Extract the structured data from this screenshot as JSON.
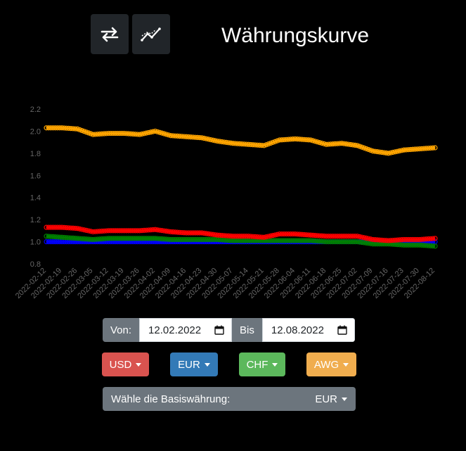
{
  "header": {
    "title": "Währungskurve",
    "icons": [
      "swap-arrows-icon",
      "line-chart-icon"
    ]
  },
  "chart_data": {
    "type": "line",
    "title": "",
    "xlabel": "",
    "ylabel": "",
    "ylim": [
      0.8,
      2.2
    ],
    "yticks": [
      "2.2",
      "2.0",
      "1.8",
      "1.6",
      "1.4",
      "1.2",
      "1.0",
      "0.8"
    ],
    "categories": [
      "2022-02-12",
      "2022-02-19",
      "2022-02-26",
      "2022-03-05",
      "2022-03-12",
      "2022-03-19",
      "2022-03-26",
      "2022-04-02",
      "2022-04-09",
      "2022-04-16",
      "2022-04-23",
      "2022-04-30",
      "2022-05-07",
      "2022-05-14",
      "2022-05-21",
      "2022-05-28",
      "2022-06-04",
      "2022-06-11",
      "2022-06-18",
      "2022-06-25",
      "2022-07-02",
      "2022-07-09",
      "2022-07-16",
      "2022-07-23",
      "2022-07-30",
      "2022-08-12"
    ],
    "grid": false,
    "legend": "none",
    "series": [
      {
        "color": "#ffa500",
        "values": [
          2.03,
          2.03,
          2.02,
          1.97,
          1.98,
          1.98,
          1.97,
          2.0,
          1.96,
          1.95,
          1.94,
          1.91,
          1.89,
          1.88,
          1.87,
          1.92,
          1.93,
          1.92,
          1.88,
          1.89,
          1.87,
          1.82,
          1.8,
          1.83,
          1.84,
          1.85
        ]
      },
      {
        "color": "#ff0000",
        "values": [
          1.13,
          1.13,
          1.12,
          1.09,
          1.1,
          1.1,
          1.1,
          1.11,
          1.09,
          1.08,
          1.08,
          1.06,
          1.05,
          1.05,
          1.04,
          1.07,
          1.07,
          1.06,
          1.05,
          1.05,
          1.05,
          1.02,
          1.01,
          1.02,
          1.02,
          1.03
        ]
      },
      {
        "color": "#008000",
        "values": [
          1.05,
          1.04,
          1.03,
          1.02,
          1.03,
          1.03,
          1.03,
          1.03,
          1.02,
          1.02,
          1.02,
          1.02,
          1.01,
          1.01,
          1.01,
          1.01,
          1.01,
          1.01,
          1.0,
          1.0,
          1.0,
          0.98,
          0.98,
          0.97,
          0.97,
          0.96
        ]
      },
      {
        "color": "#0000ff",
        "values": [
          1.0,
          1.0,
          1.0,
          1.0,
          1.0,
          1.0,
          1.0,
          1.0,
          1.0,
          1.0,
          1.0,
          1.0,
          1.0,
          1.0,
          1.0,
          1.0,
          1.0,
          1.0,
          1.0,
          1.0,
          1.0,
          1.0,
          1.0,
          1.0,
          1.0,
          1.0
        ]
      }
    ]
  },
  "date_range": {
    "from_label": "Von:",
    "from_value": "12.02.2022",
    "to_label": "Bis",
    "to_value": "12.08.2022",
    "calendar_icon": "calendar-icon"
  },
  "currencies": [
    {
      "label": "USD",
      "color": "#d9534f"
    },
    {
      "label": "EUR",
      "color": "#337ab7"
    },
    {
      "label": "CHF",
      "color": "#5cb85c"
    },
    {
      "label": "AWG",
      "color": "#f0ad4e"
    }
  ],
  "base_currency": {
    "label": "Wähle die Basiswährung:",
    "value": "EUR",
    "color": "#6c757d"
  }
}
